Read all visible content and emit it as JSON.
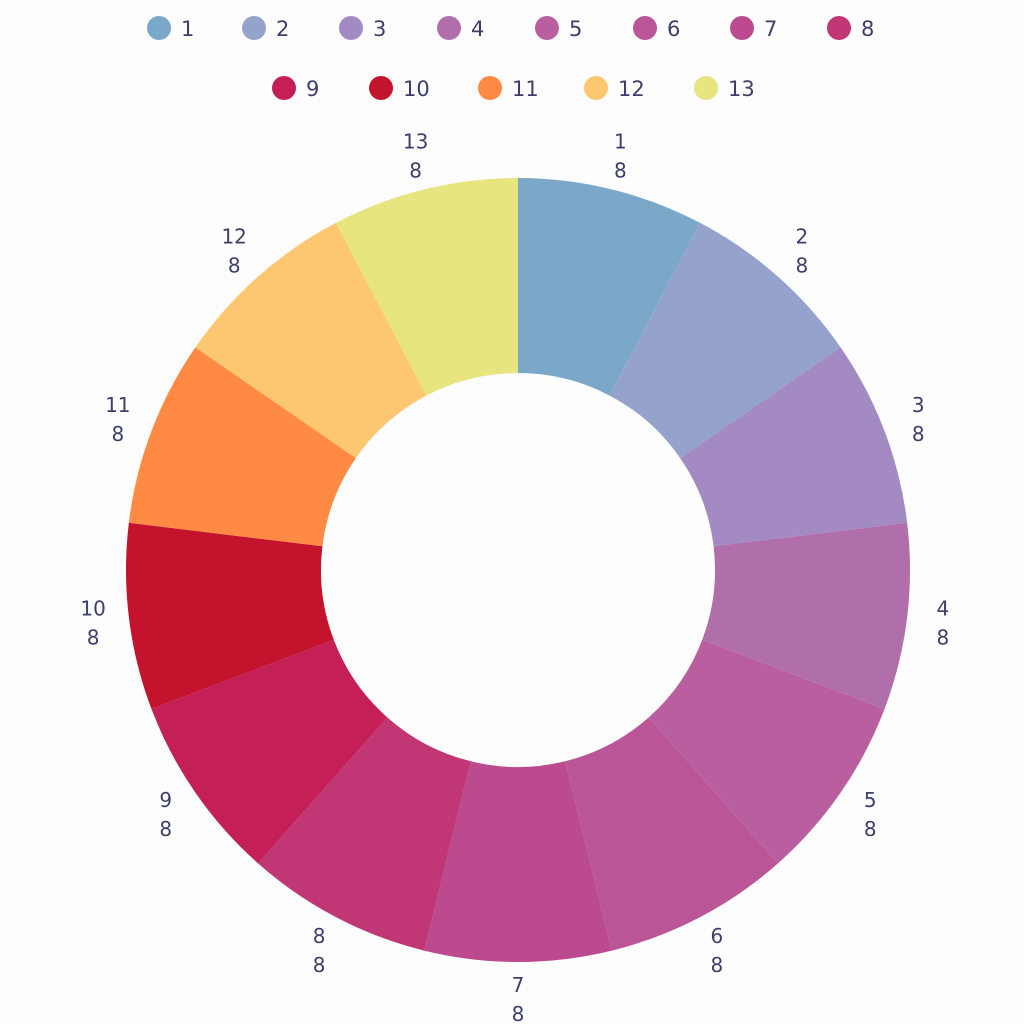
{
  "chart_data": {
    "type": "pie",
    "hole": true,
    "labels": [
      "1",
      "2",
      "3",
      "4",
      "5",
      "6",
      "7",
      "8",
      "9",
      "10",
      "11",
      "12",
      "13"
    ],
    "values": [
      8,
      8,
      8,
      8,
      8,
      8,
      8,
      8,
      8,
      8,
      8,
      8,
      8
    ],
    "colors": [
      "#7ba8c9",
      "#95a2cc",
      "#a38ac3",
      "#b06eab",
      "#b95e9f",
      "#ba5597",
      "#bb4a8e",
      "#c13674",
      "#c41f56",
      "#c4142d",
      "#ff8a43",
      "#fdc670",
      "#e6e580"
    ],
    "legend": {
      "placement": "top",
      "entries": [
        "1",
        "2",
        "3",
        "4",
        "5",
        "6",
        "7",
        "8",
        "9",
        "10",
        "11",
        "12",
        "13"
      ]
    },
    "title": ""
  }
}
